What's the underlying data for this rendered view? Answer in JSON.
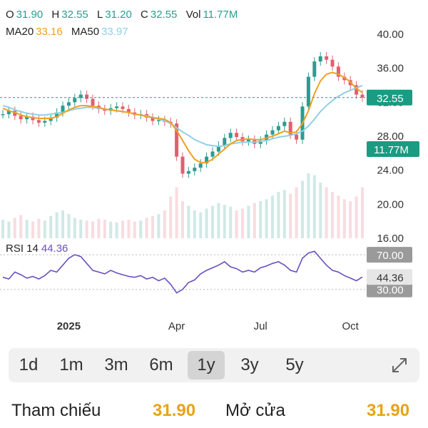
{
  "ohlc": {
    "o_label": "O",
    "o_value": "31.90",
    "h_label": "H",
    "h_value": "32.55",
    "l_label": "L",
    "l_value": "31.20",
    "c_label": "C",
    "c_value": "32.55",
    "vol_label": "Vol",
    "vol_value": "11.77M"
  },
  "ma": {
    "ma20_label": "MA20",
    "ma20_value": "33.16",
    "ma50_label": "MA50",
    "ma50_value": "33.97"
  },
  "rsi": {
    "label": "RSI 14",
    "value": "44.36"
  },
  "colors": {
    "up": "#2a9d8f",
    "down": "#e06070",
    "ma20": "#f0a020",
    "ma50": "#8fd0e6",
    "rsi": "#6a4fbf",
    "price_badge": "#1a9b82",
    "level_badge": "#9a9a9a"
  },
  "chart_data": {
    "type": "line",
    "price_axis_ticks": [
      "40.00",
      "36.00",
      "32.00",
      "28.00",
      "24.00",
      "20.00",
      "16.00"
    ],
    "price_ylim": [
      16,
      40
    ],
    "x_ticks": [
      "2025",
      "Apr",
      "Jul",
      "Oct"
    ],
    "current_price_label": "32.55",
    "current_volume_label": "11.77M",
    "rsi_levels": [
      "70.00",
      "30.00"
    ],
    "rsi_ylim": [
      10,
      80
    ],
    "rsi_current_label": "44.36",
    "series": [
      {
        "name": "Close",
        "values": [
          30.6,
          31.0,
          30.4,
          30.0,
          30.3,
          29.9,
          29.6,
          29.8,
          30.2,
          30.8,
          31.6,
          32.0,
          32.5,
          32.9,
          32.4,
          31.6,
          31.2,
          31.0,
          31.3,
          31.5,
          31.2,
          30.8,
          30.5,
          30.6,
          30.2,
          29.8,
          29.9,
          29.7,
          29.5,
          25.6,
          23.6,
          23.9,
          24.3,
          24.8,
          25.6,
          26.2,
          26.9,
          27.8,
          28.4,
          27.9,
          27.4,
          27.6,
          27.1,
          27.5,
          28.2,
          28.7,
          29.2,
          29.7,
          28.2,
          27.6,
          31.5,
          35.0,
          36.8,
          37.4,
          37.0,
          36.2,
          35.0,
          34.6,
          34.0,
          32.9,
          32.55
        ]
      },
      {
        "name": "MA20",
        "values": [
          31.3,
          31.0,
          30.8,
          30.5,
          30.3,
          30.2,
          30.1,
          30.1,
          30.1,
          30.3,
          30.7,
          31.1,
          31.4,
          31.6,
          31.6,
          31.5,
          31.4,
          31.2,
          31.1,
          31.0,
          30.9,
          30.8,
          30.6,
          30.5,
          30.3,
          30.2,
          30.1,
          30.0,
          29.6,
          28.7,
          27.5,
          26.3,
          25.3,
          24.9,
          24.9,
          25.3,
          25.9,
          26.5,
          27.1,
          27.5,
          27.6,
          27.7,
          27.6,
          27.6,
          27.8,
          28.0,
          28.3,
          28.6,
          28.4,
          28.5,
          29.5,
          31.0,
          33.0,
          34.5,
          35.3,
          35.5,
          35.3,
          34.9,
          34.4,
          33.6,
          33.16
        ]
      },
      {
        "name": "MA50",
        "values": [
          31.6,
          31.4,
          31.1,
          30.9,
          30.7,
          30.6,
          30.5,
          30.5,
          30.6,
          30.7,
          30.8,
          31.0,
          31.2,
          31.3,
          31.4,
          31.4,
          31.3,
          31.2,
          31.1,
          31.0,
          30.9,
          30.8,
          30.6,
          30.5,
          30.4,
          30.2,
          30.0,
          29.8,
          29.5,
          29.0,
          28.5,
          28.1,
          27.6,
          27.3,
          27.0,
          26.9,
          26.8,
          26.9,
          27.1,
          27.2,
          27.3,
          27.3,
          27.3,
          27.4,
          27.5,
          27.7,
          27.9,
          28.0,
          28.1,
          28.3,
          28.6,
          29.2,
          30.0,
          30.9,
          31.6,
          32.2,
          32.7,
          33.1,
          33.4,
          33.7,
          33.97
        ]
      },
      {
        "name": "RSI 14",
        "values": [
          44,
          42,
          50,
          47,
          43,
          45,
          42,
          46,
          52,
          50,
          58,
          66,
          70,
          68,
          60,
          52,
          50,
          48,
          52,
          49,
          47,
          45,
          44,
          46,
          42,
          44,
          40,
          43,
          36,
          26,
          30,
          38,
          41,
          48,
          52,
          55,
          58,
          62,
          56,
          54,
          50,
          52,
          50,
          55,
          57,
          60,
          62,
          58,
          52,
          50,
          66,
          72,
          74,
          66,
          58,
          52,
          50,
          46,
          43,
          40,
          44.36
        ]
      },
      {
        "name": "Volume",
        "values": [
          0.2,
          0.18,
          0.22,
          0.25,
          0.2,
          0.18,
          0.21,
          0.19,
          0.24,
          0.28,
          0.3,
          0.26,
          0.22,
          0.2,
          0.19,
          0.18,
          0.21,
          0.2,
          0.18,
          0.17,
          0.19,
          0.2,
          0.18,
          0.19,
          0.22,
          0.24,
          0.26,
          0.3,
          0.45,
          0.55,
          0.4,
          0.35,
          0.3,
          0.28,
          0.32,
          0.35,
          0.38,
          0.36,
          0.34,
          0.3,
          0.32,
          0.35,
          0.38,
          0.4,
          0.42,
          0.46,
          0.5,
          0.52,
          0.48,
          0.55,
          0.62,
          0.7,
          0.68,
          0.6,
          0.55,
          0.5,
          0.46,
          0.42,
          0.4,
          0.45,
          0.55
        ]
      }
    ]
  },
  "ranges": {
    "r1d": "1d",
    "r1m": "1m",
    "r3m": "3m",
    "r6m": "6m",
    "r1y": "1y",
    "r3y": "3y",
    "r5y": "5y",
    "active": "1y"
  },
  "info": {
    "ref_label": "Tham chiếu",
    "ref_value": "31.90",
    "open_label": "Mở cửa",
    "open_value": "31.90"
  }
}
